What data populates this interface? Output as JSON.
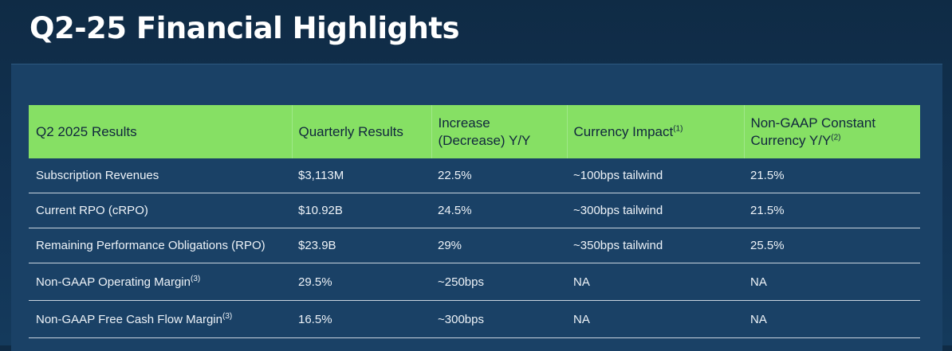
{
  "title": "Q2-25 Financial Highlights",
  "table": {
    "headers": [
      {
        "text": "Q2 2025 Results",
        "sup": ""
      },
      {
        "text": "Quarterly Results",
        "sup": ""
      },
      {
        "text": "Increase (Decrease) Y/Y",
        "sup": ""
      },
      {
        "text": "Currency Impact",
        "sup": "(1)"
      },
      {
        "text": "Non-GAAP Constant Currency Y/Y",
        "sup": "(2)"
      }
    ],
    "rows": [
      {
        "metric": "Subscription Revenues",
        "sup": "",
        "quarterly": "$3,113M",
        "change": "22.5%",
        "currency": "~100bps tailwind",
        "constant": "21.5%"
      },
      {
        "metric": "Current RPO (cRPO)",
        "sup": "",
        "quarterly": "$10.92B",
        "change": "24.5%",
        "currency": "~300bps tailwind",
        "constant": "21.5%"
      },
      {
        "metric": "Remaining Performance Obligations (RPO)",
        "sup": "",
        "quarterly": "$23.9B",
        "change": "29%",
        "currency": "~350bps tailwind",
        "constant": "25.5%"
      },
      {
        "metric": "Non-GAAP Operating Margin",
        "sup": "(3)",
        "quarterly": "29.5%",
        "change": "~250bps",
        "currency": "NA",
        "constant": "NA"
      },
      {
        "metric": "Non-GAAP Free Cash Flow Margin",
        "sup": "(3)",
        "quarterly": "16.5%",
        "change": "~300bps",
        "currency": "NA",
        "constant": "NA"
      }
    ]
  },
  "colors": {
    "background": "#123354",
    "panel": "#1a4166",
    "header_fill": "#86e064",
    "header_text": "#10263d"
  }
}
